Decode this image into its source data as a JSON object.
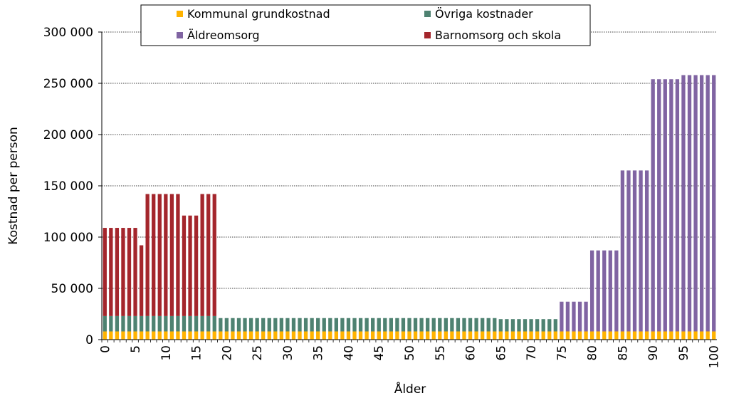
{
  "chart_data": {
    "type": "bar",
    "stacked": true,
    "title": "",
    "xlabel": "Ålder",
    "ylabel": "Kostnad per person",
    "ylim": [
      0,
      300000
    ],
    "yticks": [
      0,
      50000,
      100000,
      150000,
      200000,
      250000,
      300000
    ],
    "ytick_labels": [
      "0",
      "50 000",
      "100 000",
      "150 000",
      "200 000",
      "250 000",
      "300 000"
    ],
    "xticks": [
      0,
      5,
      10,
      15,
      20,
      25,
      30,
      35,
      40,
      45,
      50,
      55,
      60,
      65,
      70,
      75,
      80,
      85,
      90,
      95,
      100
    ],
    "xtick_labels": [
      "0",
      "5",
      "10",
      "15",
      "20",
      "25",
      "30",
      "35",
      "40",
      "45",
      "50",
      "55",
      "60",
      "65",
      "70",
      "75",
      "80",
      "85",
      "90",
      "95",
      "100"
    ],
    "grid": "horizontal dotted",
    "legend_position": "top",
    "legend_order": [
      "Kommunal grundkostnad",
      "Övriga kostnader",
      "Äldreomsorg",
      "Barnomsorg och skola"
    ],
    "x_range": [
      0,
      100
    ],
    "series": [
      {
        "name": "Kommunal grundkostnad",
        "color": "#FFB300",
        "segments": [
          {
            "from": 0,
            "to": 100,
            "value": 8000
          }
        ]
      },
      {
        "name": "Övriga kostnader",
        "color": "#4E8271",
        "segments": [
          {
            "from": 0,
            "to": 18,
            "value": 15000
          },
          {
            "from": 19,
            "to": 64,
            "value": 13000
          },
          {
            "from": 65,
            "to": 74,
            "value": 12000
          }
        ]
      },
      {
        "name": "Äldreomsorg",
        "color": "#8064A2",
        "segments": [
          {
            "from": 75,
            "to": 79,
            "value": 29000
          },
          {
            "from": 80,
            "to": 84,
            "value": 79000
          },
          {
            "from": 85,
            "to": 89,
            "value": 157000
          },
          {
            "from": 90,
            "to": 94,
            "value": 246000
          },
          {
            "from": 95,
            "to": 100,
            "value": 250000
          }
        ]
      },
      {
        "name": "Barnomsorg och skola",
        "color": "#A4262C",
        "segments": [
          {
            "from": 0,
            "to": 5,
            "value": 86000
          },
          {
            "from": 6,
            "to": 6,
            "value": 69000
          },
          {
            "from": 7,
            "to": 12,
            "value": 119000
          },
          {
            "from": 13,
            "to": 15,
            "value": 98000
          },
          {
            "from": 16,
            "to": 18,
            "value": 119000
          }
        ]
      }
    ]
  }
}
